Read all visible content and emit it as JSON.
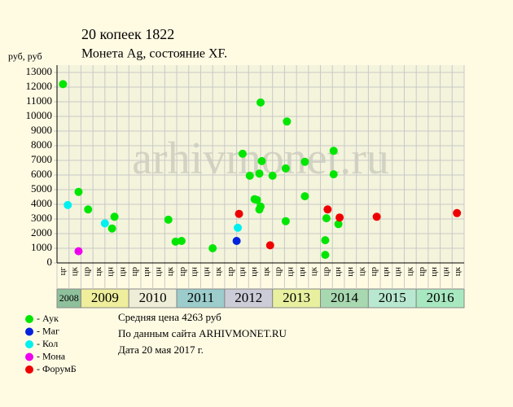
{
  "chart_data": {
    "type": "scatter",
    "title": "20 копеек 1822",
    "subtitle": "Монета Ag, состояние XF.",
    "y_label": "руб, руб",
    "watermark": "arhivmonet.ru",
    "notes": [
      "Средняя цена 4263 руб",
      "По данным сайта ARHIVMONET.RU",
      "Дата 20 мая 2017 г."
    ],
    "ylim": [
      0,
      13500
    ],
    "yticks": [
      0,
      1000,
      2000,
      3000,
      4000,
      5000,
      6000,
      7000,
      8000,
      9000,
      10000,
      11000,
      12000,
      13000
    ],
    "xlim": [
      0,
      34
    ],
    "grid": true,
    "years": [
      {
        "name": "2008",
        "color": "#8fc09c",
        "columns": [
          "цг",
          "цк"
        ]
      },
      {
        "name": "2009",
        "color": "#eeee9c",
        "columns": [
          "цр",
          "цк",
          "цн",
          "цн"
        ]
      },
      {
        "name": "2010",
        "color": "#eeeed8",
        "columns": [
          "цр",
          "цн",
          "цн",
          "цк"
        ]
      },
      {
        "name": "2011",
        "color": "#9ccccc",
        "columns": [
          "цр",
          "цн",
          "цн",
          "цк"
        ]
      },
      {
        "name": "2012",
        "color": "#ccccd8",
        "columns": [
          "цр",
          "цн",
          "цн",
          "цк"
        ]
      },
      {
        "name": "2013",
        "color": "#e8f0a0",
        "columns": [
          "цр",
          "цн",
          "цн",
          "цк"
        ]
      },
      {
        "name": "2014",
        "color": "#a8d8b0",
        "columns": [
          "цр",
          "цн",
          "цн",
          "цк"
        ]
      },
      {
        "name": "2015",
        "color": "#b8e8d0",
        "columns": [
          "цр",
          "цн",
          "цн",
          "цк"
        ]
      },
      {
        "name": "2016",
        "color": "#a8e8c0",
        "columns": [
          "цр",
          "цн",
          "цн",
          "цк"
        ]
      }
    ],
    "series": [
      {
        "name": "- Аук",
        "color": "#00e600",
        "x": [
          0.5,
          1.8,
          2.6,
          4.6,
          4.8,
          9.3,
          9.9,
          10.4,
          13.0,
          15.5,
          16.1,
          16.5,
          16.7,
          16.9,
          17.0,
          17.1,
          17.0,
          16.9,
          18.0,
          19.2,
          19.1,
          19.1,
          20.7,
          20.7,
          22.4,
          22.4,
          22.5,
          23.1,
          23.1,
          23.5
        ],
        "values": [
          12200,
          4850,
          3650,
          2350,
          3150,
          2950,
          1450,
          1500,
          1000,
          7450,
          5950,
          4350,
          4300,
          6100,
          10950,
          6950,
          3850,
          3650,
          5950,
          9650,
          6450,
          2850,
          6900,
          4550,
          1550,
          550,
          3050,
          7650,
          6050,
          2650
        ]
      },
      {
        "name": "- Маг",
        "color": "#0022dd",
        "x": [
          15.0
        ],
        "values": [
          1500
        ]
      },
      {
        "name": "- Кол",
        "color": "#00f0f0",
        "x": [
          0.9,
          4.0,
          15.1
        ],
        "values": [
          3950,
          2700,
          2400
        ]
      },
      {
        "name": "- Мона",
        "color": "#ee00ee",
        "x": [
          1.8
        ],
        "values": [
          800
        ]
      },
      {
        "name": "- ФорумБ",
        "color": "#ee0000",
        "x": [
          15.2,
          17.8,
          22.6,
          23.6,
          26.7,
          33.4
        ],
        "values": [
          3350,
          1200,
          3650,
          3100,
          3150,
          3400
        ]
      }
    ]
  }
}
